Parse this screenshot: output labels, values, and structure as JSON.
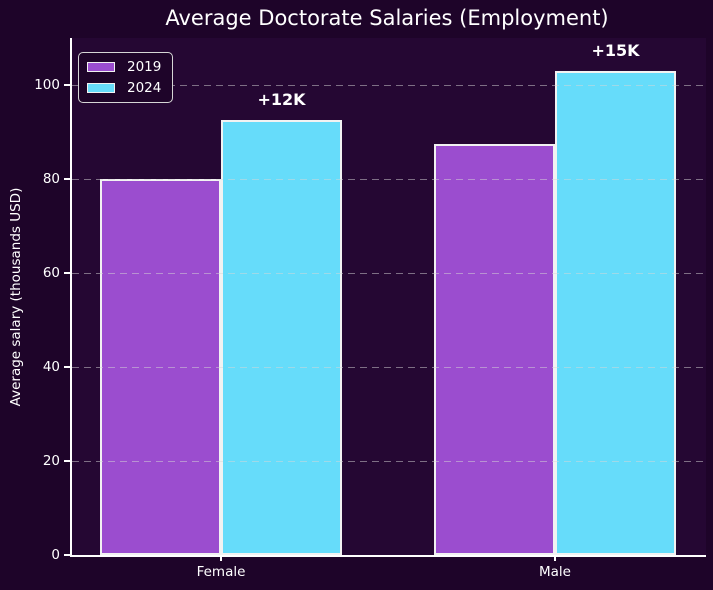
{
  "chart_data": {
    "type": "bar",
    "title": "Average Doctorate Salaries (Employment)",
    "xlabel": "",
    "ylabel": "Average salary (thousands USD)",
    "categories": [
      "Female",
      "Male"
    ],
    "series": [
      {
        "name": "2019",
        "color": "#9b4dcf",
        "values": [
          80,
          87.5
        ]
      },
      {
        "name": "2024",
        "color": "#66dcfa",
        "values": [
          92.5,
          103
        ]
      }
    ],
    "annotations": [
      {
        "text": "+12K",
        "category": "Female",
        "series": "2024"
      },
      {
        "text": "+15K",
        "category": "Male",
        "series": "2024"
      }
    ],
    "ylim": [
      0,
      110
    ],
    "yticks": [
      0,
      20,
      40,
      60,
      80,
      100
    ],
    "legend_position": "upper-left",
    "grid": {
      "axis": "y",
      "style": "dashed"
    }
  },
  "colors": {
    "figure_background": "#1e0429",
    "plot_background": "#250733",
    "text": "#ffffff",
    "axis_spine": "#ffffff",
    "bar_edge": "#f2f2f2",
    "gridline": "rgba(214,214,214,0.5)",
    "legend_border": "#d6d6d6"
  }
}
